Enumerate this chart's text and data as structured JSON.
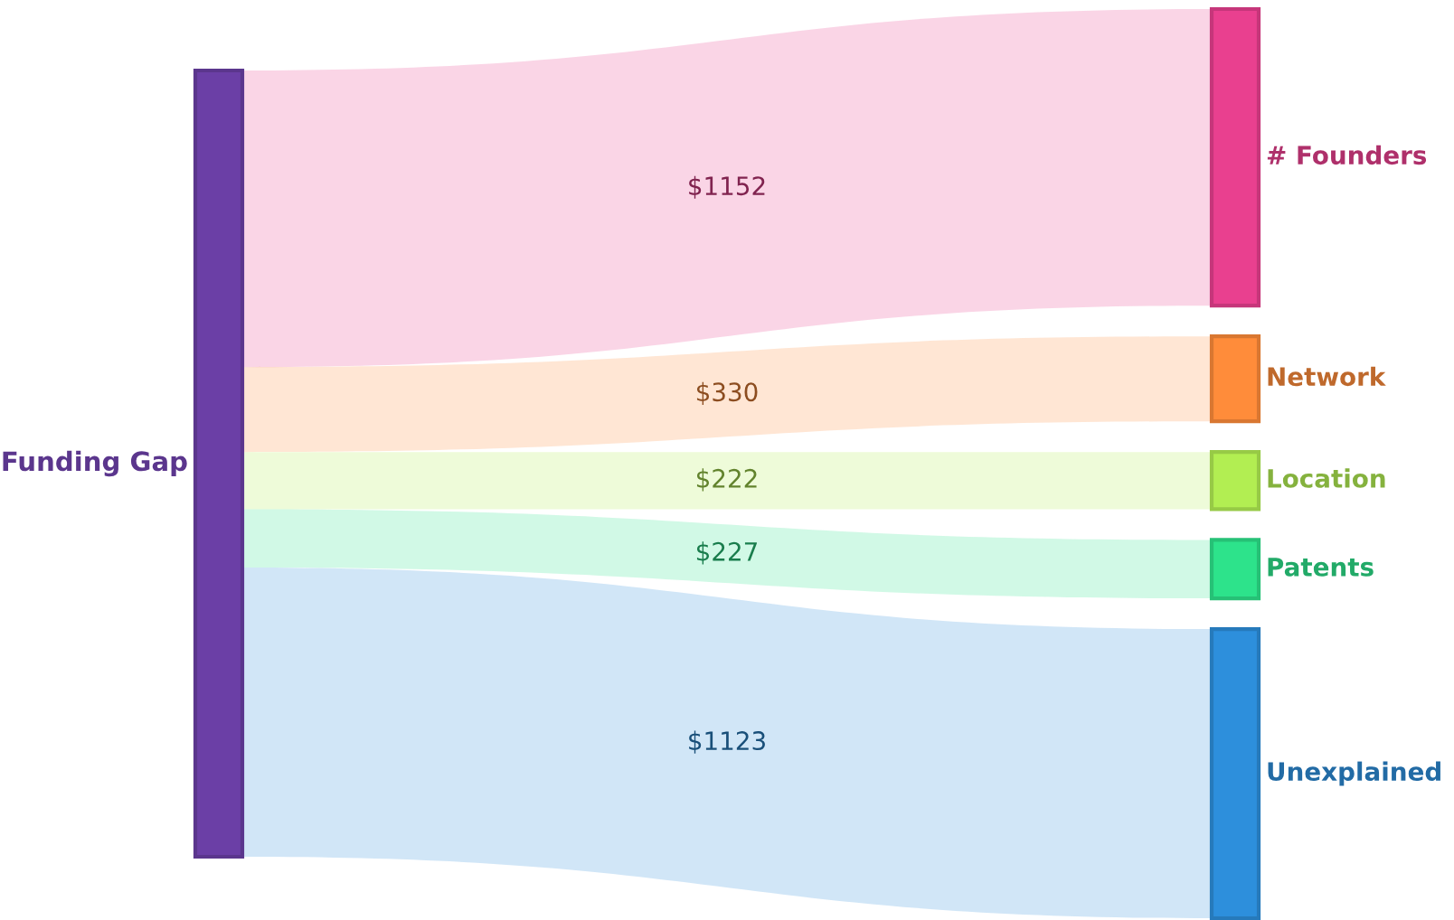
{
  "chart_data": {
    "type": "other",
    "categories": [
      "Funding Gap",
      "# Founders",
      "Network",
      "Location",
      "Patents",
      "Unexplained"
    ],
    "values": [
      null,
      1152,
      330,
      222,
      227,
      1123
    ],
    "value_labels": [
      null,
      "$1152",
      "$330",
      "$222",
      "$227",
      "$1123"
    ],
    "colors": [
      "#6b3fa6",
      "#e9408f",
      "#ff8c3a",
      "#b2ee52",
      "#2de38b",
      "#2d8fdc"
    ]
  }
}
